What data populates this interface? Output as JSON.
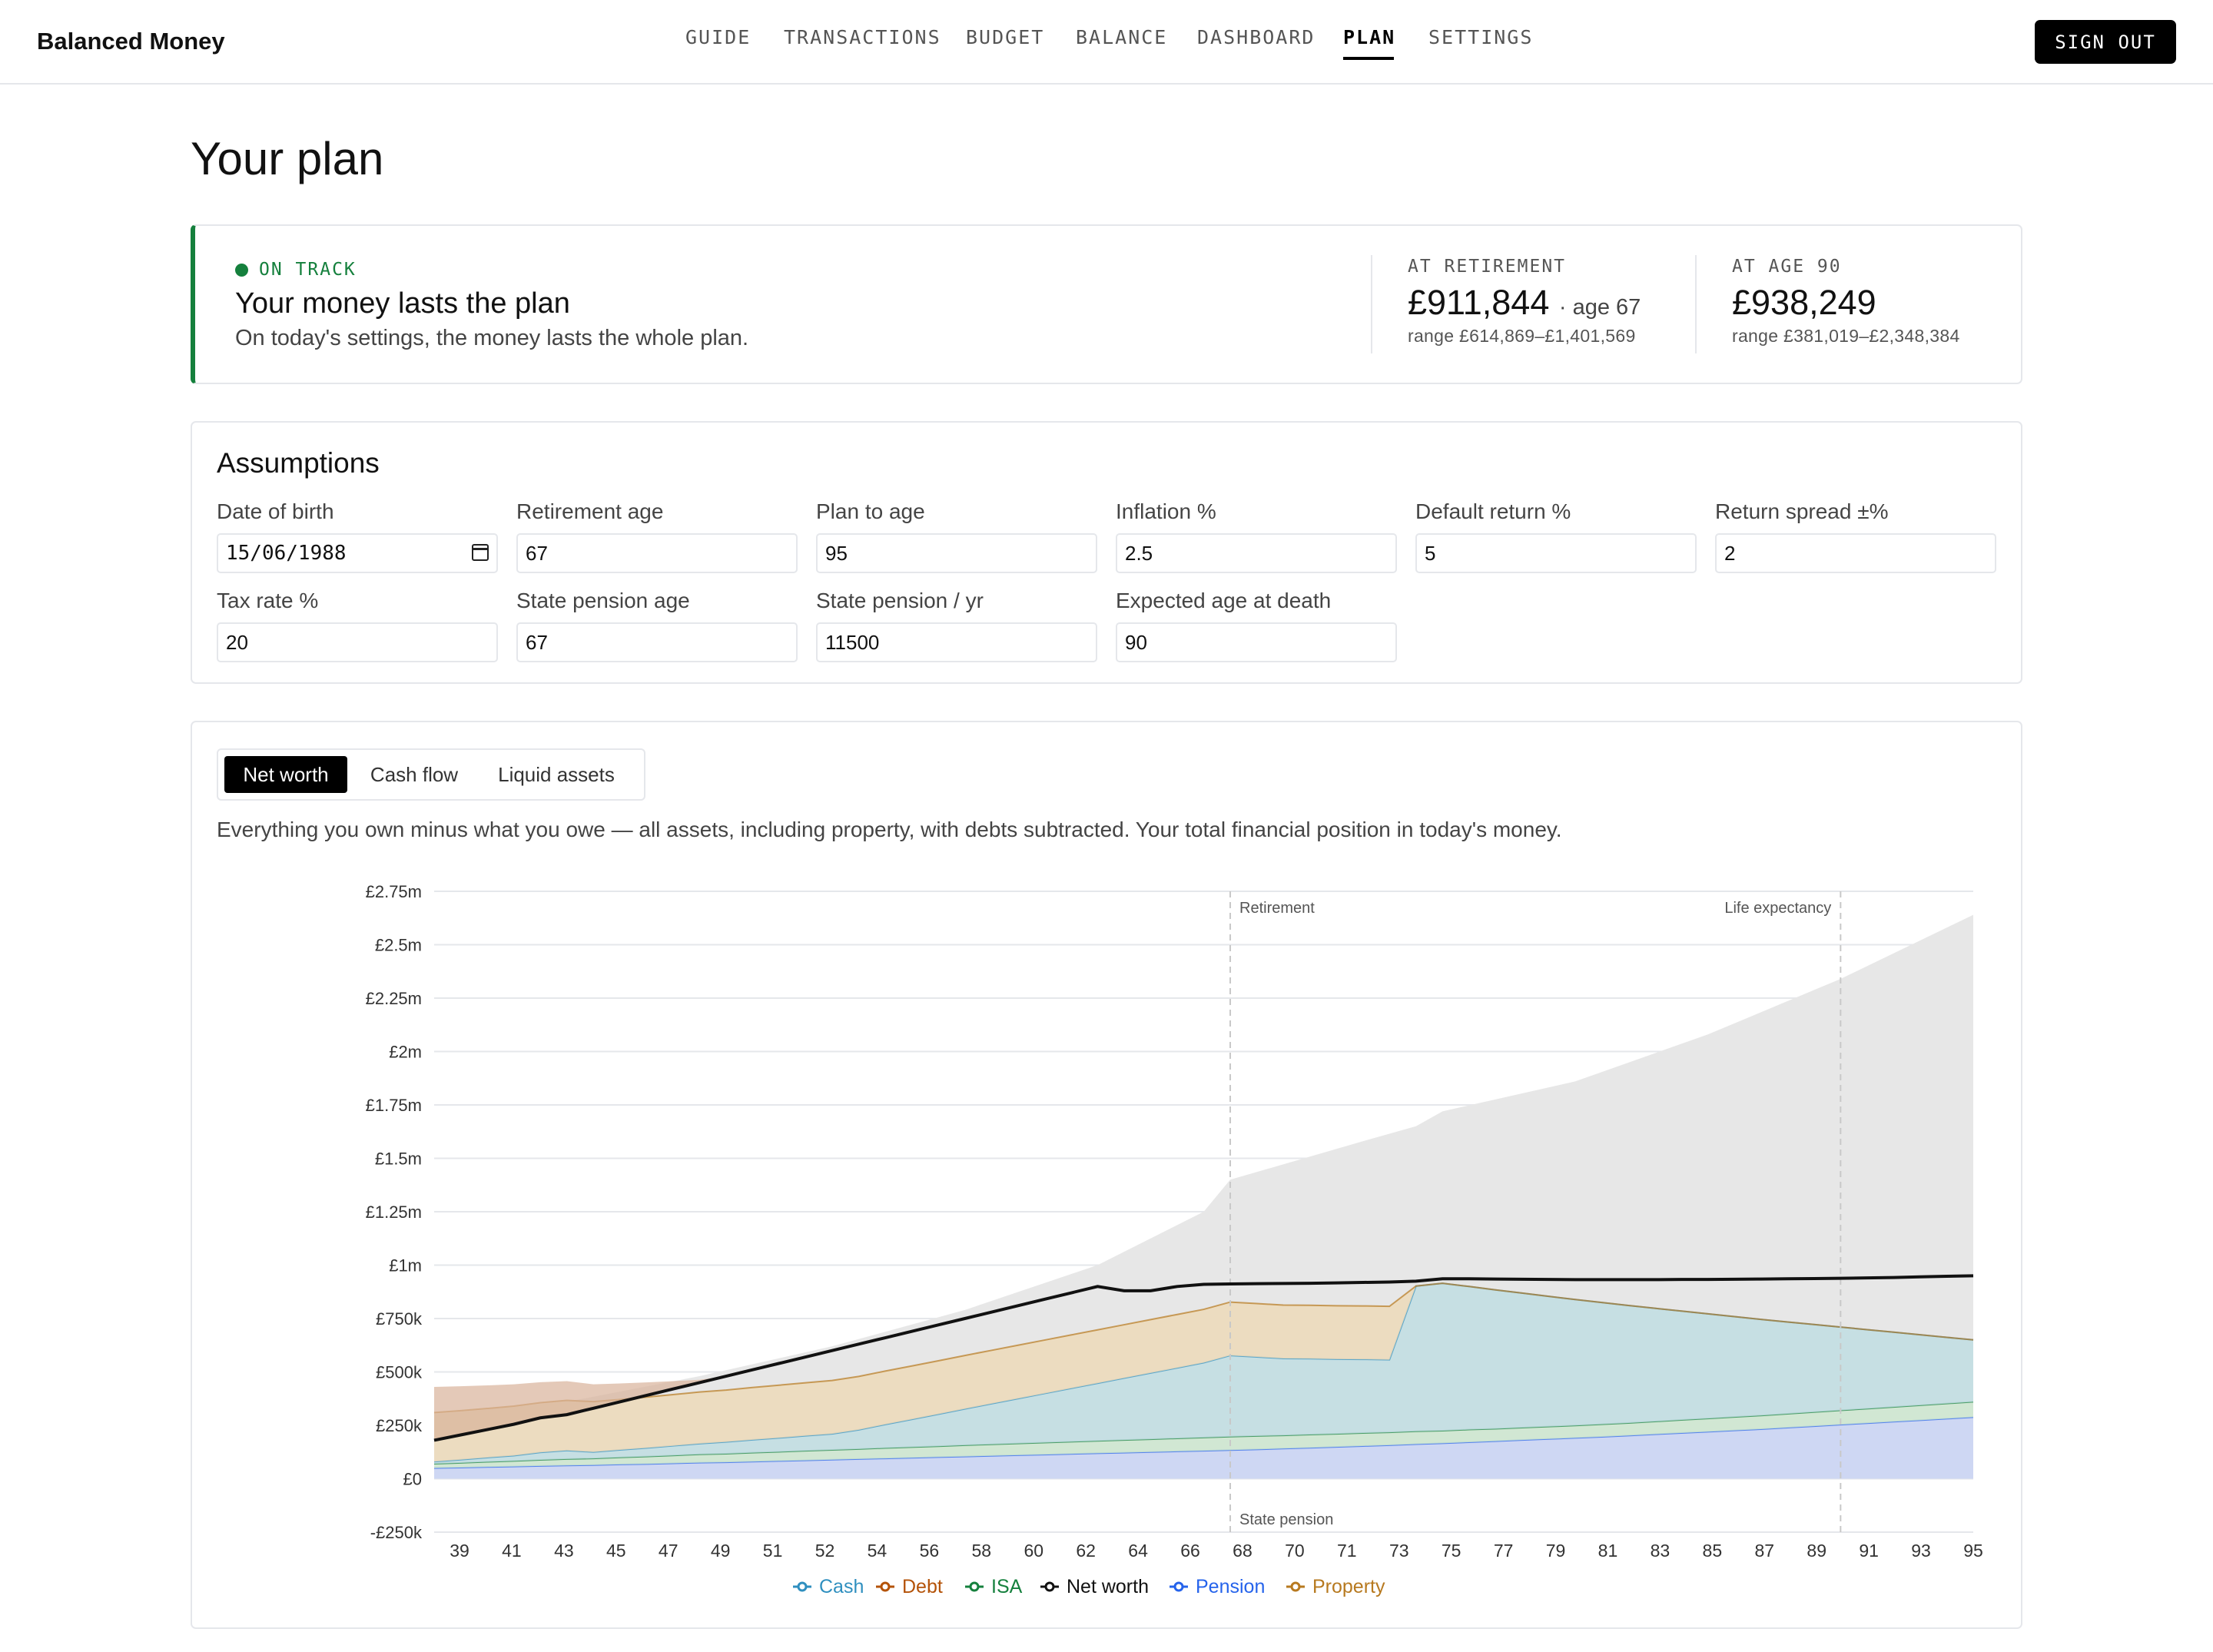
{
  "brand": "Balanced Money",
  "nav": [
    {
      "label": "GUIDE",
      "active": false
    },
    {
      "label": "TRANSACTIONS",
      "active": false
    },
    {
      "label": "BUDGET",
      "active": false
    },
    {
      "label": "BALANCE",
      "active": false
    },
    {
      "label": "DASHBOARD",
      "active": false
    },
    {
      "label": "PLAN",
      "active": true
    },
    {
      "label": "SETTINGS",
      "active": false
    }
  ],
  "sign_out": "SIGN OUT",
  "page_title": "Your plan",
  "status": {
    "badge": "ON TRACK",
    "color": "#15803d",
    "headline": "Your money lasts the plan",
    "sub": "On today's settings, the money lasts the whole plan.",
    "retirement": {
      "label": "AT RETIREMENT",
      "value": "£911,844",
      "suffix": "· age 67",
      "range": "range £614,869–£1,401,569"
    },
    "age90": {
      "label": "AT AGE 90",
      "value": "£938,249",
      "range": "range £381,019–£2,348,384"
    }
  },
  "assumptions": {
    "title": "Assumptions",
    "fields": [
      {
        "label": "Date of birth",
        "value": "15/06/1988",
        "type": "date"
      },
      {
        "label": "Retirement age",
        "value": "67"
      },
      {
        "label": "Plan to age",
        "value": "95"
      },
      {
        "label": "Inflation %",
        "value": "2.5"
      },
      {
        "label": "Default return %",
        "value": "5"
      },
      {
        "label": "Return spread ±%",
        "value": "2"
      },
      {
        "label": "Tax rate %",
        "value": "20"
      },
      {
        "label": "State pension age",
        "value": "67"
      },
      {
        "label": "State pension / yr",
        "value": "11500"
      },
      {
        "label": "Expected age at death",
        "value": "90"
      }
    ]
  },
  "chart_tabs": [
    {
      "label": "Net worth",
      "active": true
    },
    {
      "label": "Cash flow",
      "active": false
    },
    {
      "label": "Liquid assets",
      "active": false
    }
  ],
  "chart_description": "Everything you own minus what you owe — all assets, including property, with debts subtracted. Your total financial position in today's money.",
  "chart_data": {
    "type": "area",
    "x": [
      37,
      38,
      39,
      40,
      41,
      42,
      43,
      44,
      45,
      46,
      47,
      48,
      49,
      50,
      51,
      52,
      53,
      54,
      55,
      56,
      57,
      58,
      59,
      60,
      61,
      62,
      63,
      64,
      65,
      66,
      67,
      68,
      69,
      70,
      71,
      72,
      73,
      74,
      75,
      76,
      77,
      78,
      79,
      80,
      81,
      82,
      83,
      84,
      85,
      86,
      87,
      88,
      89,
      90,
      91,
      92,
      93,
      94,
      95
    ],
    "x_ticks": [
      "39",
      "41",
      "43",
      "45",
      "47",
      "49",
      "51",
      "52",
      "54",
      "56",
      "58",
      "60",
      "62",
      "64",
      "66",
      "68",
      "70",
      "71",
      "73",
      "75",
      "77",
      "79",
      "81",
      "83",
      "85",
      "87",
      "89",
      "91",
      "93",
      "95"
    ],
    "y_ticks": [
      "£2.75m",
      "£2.5m",
      "£2.25m",
      "£2m",
      "£1.75m",
      "£1.5m",
      "£1.25m",
      "£1m",
      "£750k",
      "£500k",
      "£250k",
      "£0",
      "-£250k"
    ],
    "ylim": [
      -250000,
      2750000
    ],
    "annotations": [
      {
        "label": "Retirement",
        "x": 67
      },
      {
        "label": "Life expectancy",
        "x": 90
      },
      {
        "label": "State pension",
        "x": 67
      }
    ],
    "range_band": {
      "x": [
        37,
        42,
        47,
        52,
        57,
        62,
        66,
        67,
        72,
        74,
        75,
        80,
        85,
        90,
        95
      ],
      "upper": [
        300000,
        360000,
        480000,
        620000,
        790000,
        1000000,
        1250000,
        1400000,
        1580000,
        1650000,
        1720000,
        1860000,
        2080000,
        2340000,
        2640000
      ]
    },
    "series": [
      {
        "name": "Pension",
        "color": "#2563eb",
        "values": [
          50000,
          52000,
          55000,
          57000,
          60000,
          62000,
          64000,
          67000,
          69000,
          72000,
          75000,
          77000,
          80000,
          83000,
          86000,
          89000,
          92000,
          95000,
          98000,
          101000,
          104000,
          107000,
          110000,
          113000,
          116000,
          119000,
          122000,
          125000,
          128000,
          131000,
          134000,
          137000,
          141000,
          145000,
          149000,
          153000,
          157000,
          162000,
          166000,
          171000,
          176000,
          181000,
          186000,
          191000,
          196000,
          202000,
          208000,
          214000,
          220000,
          226000,
          232000,
          239000,
          246000,
          253000,
          260000,
          267000,
          274000,
          281000,
          288000
        ]
      },
      {
        "name": "ISA",
        "color": "#15803d",
        "values": [
          20000,
          22000,
          24000,
          26000,
          28000,
          30000,
          31000,
          33000,
          35000,
          37000,
          39000,
          40000,
          42000,
          43000,
          45000,
          46000,
          47000,
          49000,
          50000,
          51000,
          53000,
          54000,
          55000,
          56000,
          57000,
          58000,
          59000,
          60000,
          61000,
          62000,
          63000,
          63000,
          62000,
          62000,
          61000,
          61000,
          60000,
          60000,
          59000,
          59000,
          58000,
          58000,
          58000,
          58000,
          59000,
          59000,
          60000,
          61000,
          62000,
          63000,
          64000,
          65000,
          66000,
          67000,
          68000,
          69000,
          70000,
          71000,
          72000
        ]
      },
      {
        "name": "Cash",
        "color": "#2f8fbf",
        "values": [
          10000,
          15000,
          20000,
          25000,
          35000,
          40000,
          30000,
          35000,
          40000,
          45000,
          50000,
          55000,
          60000,
          65000,
          70000,
          75000,
          90000,
          110000,
          130000,
          150000,
          170000,
          190000,
          210000,
          230000,
          250000,
          270000,
          290000,
          310000,
          330000,
          350000,
          380000,
          370000,
          360000,
          355000,
          350000,
          345000,
          340000,
          680000,
          690000,
          670000,
          650000,
          630000,
          610000,
          590000,
          570000,
          550000,
          530000,
          510000,
          490000,
          470000,
          450000,
          430000,
          410000,
          390000,
          370000,
          350000,
          330000,
          310000,
          290000
        ]
      },
      {
        "name": "Property",
        "color": "#b7791f",
        "values": [
          230000,
          230000,
          230000,
          232000,
          233000,
          235000,
          236000,
          236000,
          238000,
          240000,
          242000,
          243000,
          245000,
          247000,
          248000,
          250000,
          250000,
          250000,
          250000,
          250000,
          250000,
          250000,
          250000,
          250000,
          250000,
          250000,
          250000,
          250000,
          250000,
          250000,
          250000,
          250000,
          250000,
          250000,
          250000,
          250000,
          250000,
          0,
          0,
          0,
          0,
          0,
          0,
          0,
          0,
          0,
          0,
          0,
          0,
          0,
          0,
          0,
          0,
          0,
          0,
          0,
          0,
          0,
          0
        ]
      },
      {
        "name": "Debt",
        "color": "#b45309",
        "values": [
          -200000,
          -190000,
          -180000,
          -170000,
          -160000,
          -150000,
          -135000,
          -125000,
          -115000,
          -105000,
          -95000,
          -85000,
          -75000,
          -65000,
          -55000,
          -40000,
          -30000,
          -20000,
          -10000,
          0,
          0,
          0,
          0,
          0,
          0,
          0,
          0,
          0,
          0,
          0,
          0,
          0,
          0,
          0,
          0,
          0,
          0,
          0,
          0,
          0,
          0,
          0,
          0,
          0,
          0,
          0,
          0,
          0,
          0,
          0,
          0,
          0,
          0,
          0,
          0,
          0,
          0,
          0,
          0
        ]
      },
      {
        "name": "Net worth",
        "color": "#111111",
        "values": [
          180000,
          205000,
          230000,
          255000,
          285000,
          300000,
          330000,
          360000,
          390000,
          420000,
          450000,
          480000,
          510000,
          540000,
          570000,
          600000,
          630000,
          660000,
          690000,
          720000,
          750000,
          780000,
          810000,
          840000,
          870000,
          900000,
          880000,
          880000,
          900000,
          910000,
          911844,
          913000,
          914000,
          915000,
          917000,
          919000,
          921000,
          925000,
          936000,
          936000,
          935000,
          934000,
          933000,
          932000,
          932000,
          932000,
          932000,
          933000,
          933000,
          934000,
          935000,
          936000,
          937000,
          938249,
          940000,
          942000,
          945000,
          948000,
          950000
        ]
      }
    ],
    "legend": [
      "Cash",
      "Debt",
      "ISA",
      "Net worth",
      "Pension",
      "Property"
    ],
    "legend_colors": {
      "Cash": "#2f8fbf",
      "Debt": "#b45309",
      "ISA": "#15803d",
      "Net worth": "#111111",
      "Pension": "#2563eb",
      "Property": "#b7791f"
    }
  }
}
